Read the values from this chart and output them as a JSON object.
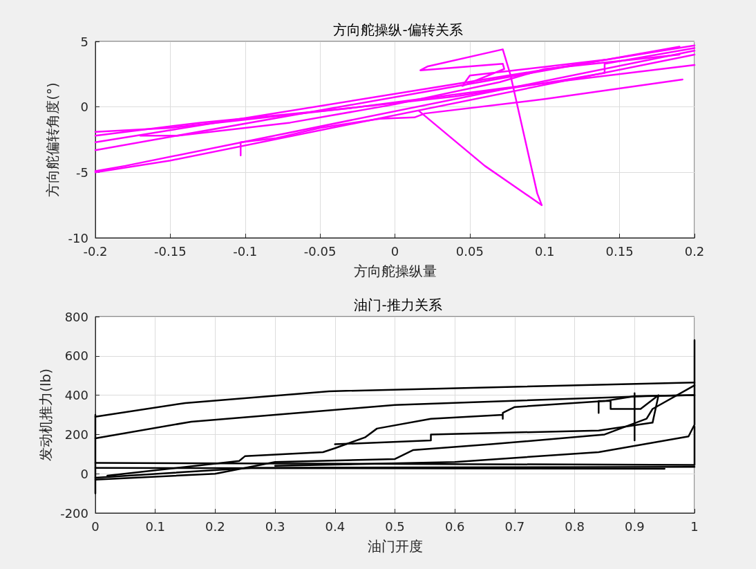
{
  "chart_data": [
    {
      "type": "line",
      "title": "方向舵操纵-偏转关系",
      "xlabel": "方向舵操纵量",
      "ylabel": "方向舵偏转角度(°)",
      "xlim": [
        -0.2,
        0.2
      ],
      "xticks": [
        -0.2,
        -0.15,
        -0.1,
        -0.05,
        0,
        0.05,
        0.1,
        0.15,
        0.2
      ],
      "ylim": [
        -10,
        5
      ],
      "yticks": [
        -10,
        -5,
        0,
        5
      ],
      "grid": true,
      "marker": "none",
      "line_style": "solid",
      "series": [
        {
          "color": "#ff00ff",
          "x": [
            -0.2,
            -0.15,
            0.2
          ],
          "values": [
            -5.0,
            -4.1,
            4.0
          ]
        },
        {
          "color": "#ff00ff",
          "x": [
            -0.2,
            -0.18,
            0.2
          ],
          "values": [
            -4.9,
            -4.5,
            4.3
          ]
        },
        {
          "color": "#ff00ff",
          "x": [
            -0.2,
            0.19
          ],
          "values": [
            -3.3,
            4.6
          ]
        },
        {
          "color": "#ff00ff",
          "x": [
            -0.2,
            0.2
          ],
          "values": [
            -2.7,
            4.7
          ]
        },
        {
          "color": "#ff00ff",
          "x": [
            -0.2,
            -0.13,
            -0.03,
            0.07,
            0.2
          ],
          "values": [
            -2.2,
            -1.2,
            -0.1,
            1.4,
            3.2
          ]
        },
        {
          "color": "#ff00ff",
          "x": [
            -0.103,
            -0.103,
            -0.08,
            -0.05,
            -0.01,
            0.013,
            0.02,
            0.1,
            0.192
          ],
          "values": [
            -3.7,
            -2.7,
            -2.4,
            -1.6,
            -0.9,
            -0.8,
            -0.5,
            0.6,
            2.1
          ]
        },
        {
          "color": "#ff00ff",
          "x": [
            0.016,
            0.06,
            0.098,
            0.095,
            0.077,
            0.072,
            0.022,
            0.017,
            0.072,
            0.073,
            0.045,
            0.05,
            0.14
          ],
          "values": [
            -0.3,
            -4.5,
            -7.5,
            -6.6,
            2.5,
            4.4,
            3.1,
            2.8,
            3.3,
            2.9,
            1.6,
            2.4,
            3.6
          ]
        },
        {
          "color": "#ff00ff",
          "x": [
            -0.2,
            -0.15,
            0.04,
            0.11,
            0.14,
            0.14,
            0.2
          ],
          "values": [
            -1.9,
            -1.6,
            0.8,
            2.0,
            2.6,
            3.3,
            4.5
          ]
        },
        {
          "color": "#ff00ff",
          "x": [
            -0.17,
            -0.145,
            -0.07,
            0,
            0.07,
            0.1,
            0.19
          ],
          "values": [
            -2.2,
            -2.2,
            -1.2,
            0.2,
            1.9,
            2.9,
            4.0
          ]
        }
      ]
    },
    {
      "type": "line",
      "title": "油门-推力关系",
      "xlabel": "油门开度",
      "ylabel": "发动机推力(lb)",
      "xlim": [
        0,
        1
      ],
      "xticks": [
        0,
        0.1,
        0.2,
        0.3,
        0.4,
        0.5,
        0.6,
        0.7,
        0.8,
        0.9,
        1
      ],
      "ylim": [
        -200,
        800
      ],
      "yticks": [
        -200,
        0,
        200,
        400,
        600,
        800
      ],
      "grid": true,
      "marker": "none",
      "line_style": "solid",
      "series": [
        {
          "color": "#000000",
          "x": [
            0,
            0.15,
            0.39,
            1
          ],
          "values": [
            290,
            360,
            420,
            465
          ]
        },
        {
          "color": "#000000",
          "x": [
            0,
            0.16,
            0.5,
            0.92,
            1
          ],
          "values": [
            180,
            265,
            350,
            395,
            400
          ]
        },
        {
          "color": "#000000",
          "x": [
            0,
            1,
            1
          ],
          "values": [
            55,
            45,
            240
          ]
        },
        {
          "color": "#000000",
          "x": [
            0,
            0.95
          ],
          "values": [
            30,
            25
          ]
        },
        {
          "color": "#000000",
          "x": [
            0,
            0.26,
            1
          ],
          "values": [
            -20,
            30,
            35
          ]
        },
        {
          "color": "#000000",
          "x": [
            0.02,
            0.24,
            0.25,
            0.38,
            0.4,
            0.45,
            0.47,
            0.56,
            0.68,
            0.68,
            0.68,
            0.7,
            0.85,
            0.9,
            1
          ],
          "values": [
            -10,
            65,
            90,
            110,
            130,
            185,
            230,
            280,
            300,
            280,
            310,
            340,
            370,
            395,
            400
          ]
        },
        {
          "color": "#000000",
          "x": [
            0,
            0.2,
            0.3,
            0.5,
            0.53,
            0.66,
            0.85,
            0.92,
            0.93,
            1
          ],
          "values": [
            -30,
            0,
            60,
            75,
            120,
            150,
            200,
            280,
            330,
            450
          ]
        },
        {
          "color": "#000000",
          "x": [
            0.4,
            0.56,
            0.56,
            0.84,
            0.93,
            0.94,
            0.91,
            0.86,
            0.86,
            0.84,
            0.84
          ],
          "values": [
            150,
            170,
            200,
            220,
            260,
            400,
            330,
            330,
            370,
            370,
            310
          ]
        },
        {
          "color": "#000000",
          "x": [
            0.3,
            0.6,
            0.84,
            0.99,
            1,
            1
          ],
          "values": [
            40,
            60,
            110,
            190,
            250,
            680
          ]
        },
        {
          "color": "#000000",
          "x": [
            0,
            0
          ],
          "values": [
            -100,
            300
          ]
        },
        {
          "color": "#000000",
          "x": [
            0.9,
            0.9
          ],
          "values": [
            170,
            410
          ]
        }
      ]
    }
  ]
}
